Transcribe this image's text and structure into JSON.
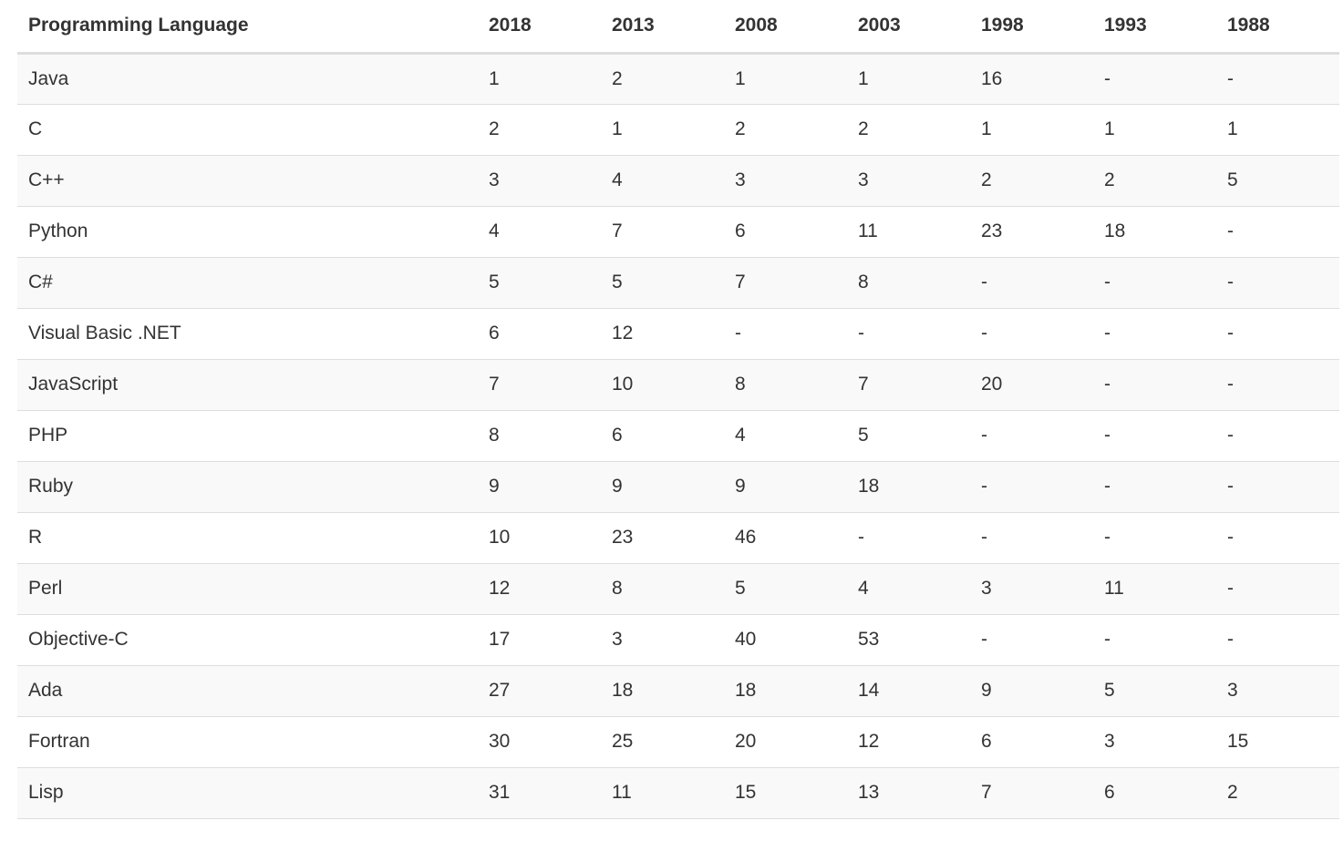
{
  "table": {
    "headers": [
      "Programming Language",
      "2018",
      "2013",
      "2008",
      "2003",
      "1998",
      "1993",
      "1988"
    ],
    "rows": [
      [
        "Java",
        "1",
        "2",
        "1",
        "1",
        "16",
        "-",
        "-"
      ],
      [
        "C",
        "2",
        "1",
        "2",
        "2",
        "1",
        "1",
        "1"
      ],
      [
        "C++",
        "3",
        "4",
        "3",
        "3",
        "2",
        "2",
        "5"
      ],
      [
        "Python",
        "4",
        "7",
        "6",
        "11",
        "23",
        "18",
        "-"
      ],
      [
        "C#",
        "5",
        "5",
        "7",
        "8",
        "-",
        "-",
        "-"
      ],
      [
        "Visual Basic .NET",
        "6",
        "12",
        "-",
        "-",
        "-",
        "-",
        "-"
      ],
      [
        "JavaScript",
        "7",
        "10",
        "8",
        "7",
        "20",
        "-",
        "-"
      ],
      [
        "PHP",
        "8",
        "6",
        "4",
        "5",
        "-",
        "-",
        "-"
      ],
      [
        "Ruby",
        "9",
        "9",
        "9",
        "18",
        "-",
        "-",
        "-"
      ],
      [
        "R",
        "10",
        "23",
        "46",
        "-",
        "-",
        "-",
        "-"
      ],
      [
        "Perl",
        "12",
        "8",
        "5",
        "4",
        "3",
        "11",
        "-"
      ],
      [
        "Objective-C",
        "17",
        "3",
        "40",
        "53",
        "-",
        "-",
        "-"
      ],
      [
        "Ada",
        "27",
        "18",
        "18",
        "14",
        "9",
        "5",
        "3"
      ],
      [
        "Fortran",
        "30",
        "25",
        "20",
        "12",
        "6",
        "3",
        "15"
      ],
      [
        "Lisp",
        "31",
        "11",
        "15",
        "13",
        "7",
        "6",
        "2"
      ]
    ]
  },
  "colors": {
    "text": "#333333",
    "border": "#dddddd",
    "stripe": "#f9f9f9",
    "background": "#ffffff"
  }
}
